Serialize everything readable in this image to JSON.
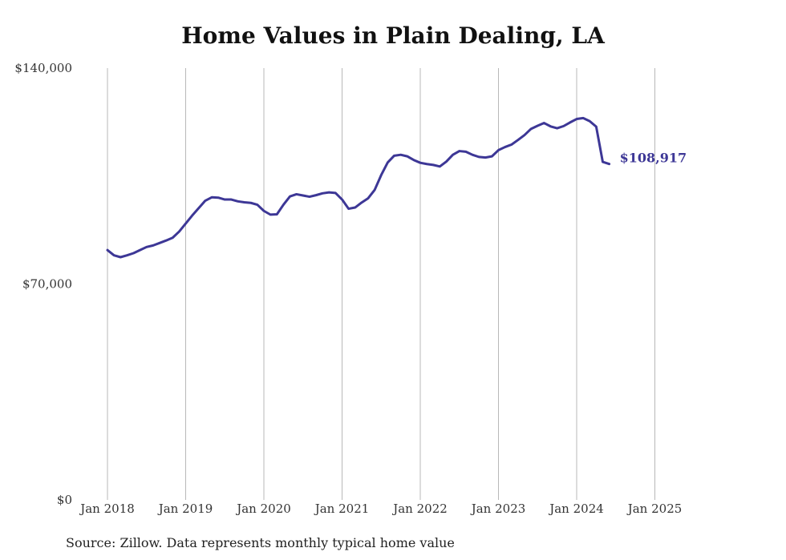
{
  "chart_data": {
    "type": "line",
    "title": "Home Values in Plain Dealing, LA",
    "xlabel": "",
    "ylabel": "",
    "ylim": [
      0,
      140000
    ],
    "y_ticks": [
      {
        "value": 0,
        "label": "$0"
      },
      {
        "value": 70000,
        "label": "$70,000"
      },
      {
        "value": 140000,
        "label": "$140,000"
      }
    ],
    "x_ticks": [
      {
        "month_index": 0,
        "label": "Jan 2018"
      },
      {
        "month_index": 12,
        "label": "Jan 2019"
      },
      {
        "month_index": 24,
        "label": "Jan 2020"
      },
      {
        "month_index": 36,
        "label": "Jan 2021"
      },
      {
        "month_index": 48,
        "label": "Jan 2022"
      },
      {
        "month_index": 60,
        "label": "Jan 2023"
      },
      {
        "month_index": 72,
        "label": "Jan 2024"
      },
      {
        "month_index": 84,
        "label": "Jan 2025"
      }
    ],
    "grid": "vertical",
    "series": [
      {
        "name": "Typical home value",
        "color": "#3d3796",
        "start": "Jan 2018",
        "frequency": "monthly",
        "values": [
          81000,
          79300,
          78700,
          79300,
          80000,
          81000,
          82000,
          82500,
          83300,
          84100,
          85000,
          87000,
          89600,
          92200,
          94600,
          97000,
          98100,
          98000,
          97400,
          97400,
          96800,
          96500,
          96300,
          95700,
          93700,
          92500,
          92600,
          95700,
          98400,
          99100,
          98700,
          98300,
          98800,
          99400,
          99700,
          99500,
          97400,
          94400,
          94800,
          96400,
          97800,
          100500,
          105300,
          109400,
          111600,
          111900,
          111400,
          110200,
          109300,
          108900,
          108600,
          108100,
          109700,
          111900,
          113100,
          112900,
          111900,
          111200,
          111000,
          111400,
          113400,
          114400,
          115200,
          116700,
          118300,
          120300,
          121300,
          122200,
          121100,
          120500,
          121200,
          122400,
          123500,
          123800,
          122800,
          121000,
          109600,
          108917
        ]
      }
    ],
    "end_label": "$108,917"
  },
  "footer": {
    "source": "Source: Zillow. Data represents monthly typical home value"
  }
}
